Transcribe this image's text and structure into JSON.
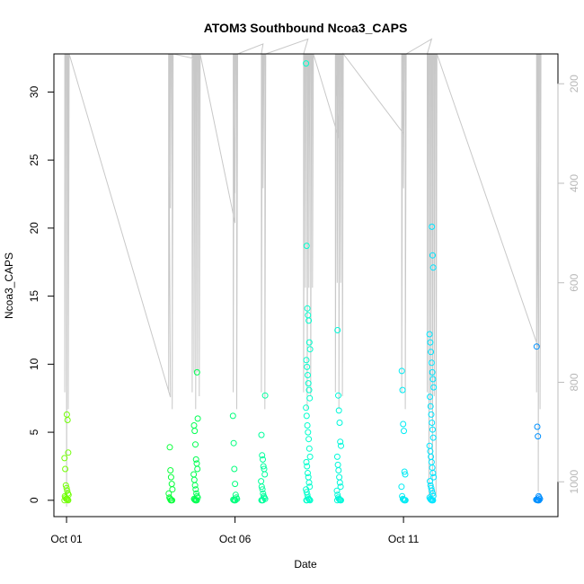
{
  "chart_data": {
    "type": "scatter",
    "title": "ATOM3 Southbound Ncoa3_CAPS",
    "xlabel": "Date",
    "ylabel": "Ncoa3_CAPS",
    "x_range": [
      "2021-09-30T15:00",
      "2021-10-15T14:00"
    ],
    "ylim": [
      -1.2,
      32.8
    ],
    "y_ticks": [
      0,
      5,
      10,
      15,
      20,
      25,
      30
    ],
    "x_ticks": [
      {
        "label": "Oct 01",
        "date": "2021-10-01T00:00"
      },
      {
        "label": "Oct 06",
        "date": "2021-10-06T00:00"
      },
      {
        "label": "Oct 11",
        "date": "2021-10-11T00:00"
      }
    ],
    "secondary_axis": {
      "reversed": true,
      "ylim": [
        1070,
        140
      ],
      "ticks": [
        200,
        400,
        600,
        800,
        1000
      ],
      "color": "#bdbdbd",
      "description": "depth trace drawn as grey line"
    },
    "grid": false,
    "legend": "none",
    "marker": "open-circle",
    "color_gradient": [
      "#7fff00",
      "#00ff40",
      "#00ffcc",
      "#00e5ff",
      "#0080ff"
    ],
    "clusters": [
      {
        "x": "2021-10-01T00:00",
        "values": [
          0,
          0,
          0.05,
          0.1,
          0.1,
          0.2,
          0.3,
          0.4,
          0.5,
          0.7,
          0.9,
          1.1,
          2.3,
          3.1,
          3.5,
          5.9,
          6.3
        ]
      },
      {
        "x": "2021-10-04T02:00",
        "values": [
          0,
          0,
          0,
          0.1,
          0.2,
          0.5,
          0.8,
          1.2,
          1.7,
          2.2,
          3.9
        ]
      },
      {
        "x": "2021-10-04T20:00",
        "values": [
          0,
          0,
          0,
          0.05,
          0.1,
          0.2,
          0.3,
          0.5,
          0.8,
          1.1,
          1.5,
          1.9,
          2.3,
          2.7,
          3.0,
          4.1,
          5.1,
          5.5,
          6.0,
          9.4
        ]
      },
      {
        "x": "2021-10-06T00:00",
        "values": [
          0,
          0,
          0,
          0.05,
          0.1,
          0.2,
          0.4,
          1.2,
          2.3,
          4.2,
          6.2
        ]
      },
      {
        "x": "2021-10-06T20:00",
        "values": [
          0,
          0,
          0,
          0.1,
          0.2,
          0.3,
          0.5,
          0.8,
          1.0,
          1.4,
          1.9,
          2.3,
          2.5,
          3.0,
          3.3,
          4.8,
          7.7
        ]
      },
      {
        "x": "2021-10-08T04:00",
        "values": [
          0,
          0,
          0,
          0.05,
          0.1,
          0.2,
          0.4,
          0.6,
          0.8,
          1.0,
          1.3,
          1.7,
          2.0,
          2.5,
          2.8,
          3.2,
          3.8,
          4.5,
          5.0,
          5.5,
          6.2,
          6.8,
          7.5,
          8.1,
          8.6,
          9.2,
          9.8,
          10.3,
          11.1,
          11.6,
          13.2,
          13.6,
          14.1,
          18.7,
          32.1
        ]
      },
      {
        "x": "2021-10-09T02:00",
        "values": [
          0,
          0,
          0,
          0.05,
          0.1,
          0.2,
          0.4,
          0.7,
          1.0,
          1.3,
          1.7,
          2.2,
          2.6,
          3.2,
          4.0,
          4.3,
          5.7,
          6.6,
          7.7,
          12.5
        ]
      },
      {
        "x": "2021-10-11T00:00",
        "values": [
          0,
          0,
          0,
          0.05,
          0.1,
          0.3,
          1.0,
          1.9,
          2.1,
          5.1,
          5.6,
          8.1,
          9.5
        ]
      },
      {
        "x": "2021-10-11T20:00",
        "values": [
          0,
          0,
          0,
          0.05,
          0.1,
          0.2,
          0.3,
          0.5,
          0.7,
          0.9,
          1.1,
          1.4,
          1.7,
          2.0,
          2.4,
          2.8,
          3.2,
          3.6,
          4.0,
          4.6,
          5.2,
          5.7,
          6.3,
          6.9,
          7.6,
          8.3,
          8.9,
          9.4,
          10.1,
          10.9,
          11.6,
          12.2,
          17.1,
          18.0,
          20.1
        ]
      },
      {
        "x": "2021-10-15T00:00",
        "values": [
          0,
          0,
          0,
          0.02,
          0.05,
          0.1,
          0.2,
          0.3,
          4.7,
          5.4,
          11.3
        ]
      }
    ]
  }
}
